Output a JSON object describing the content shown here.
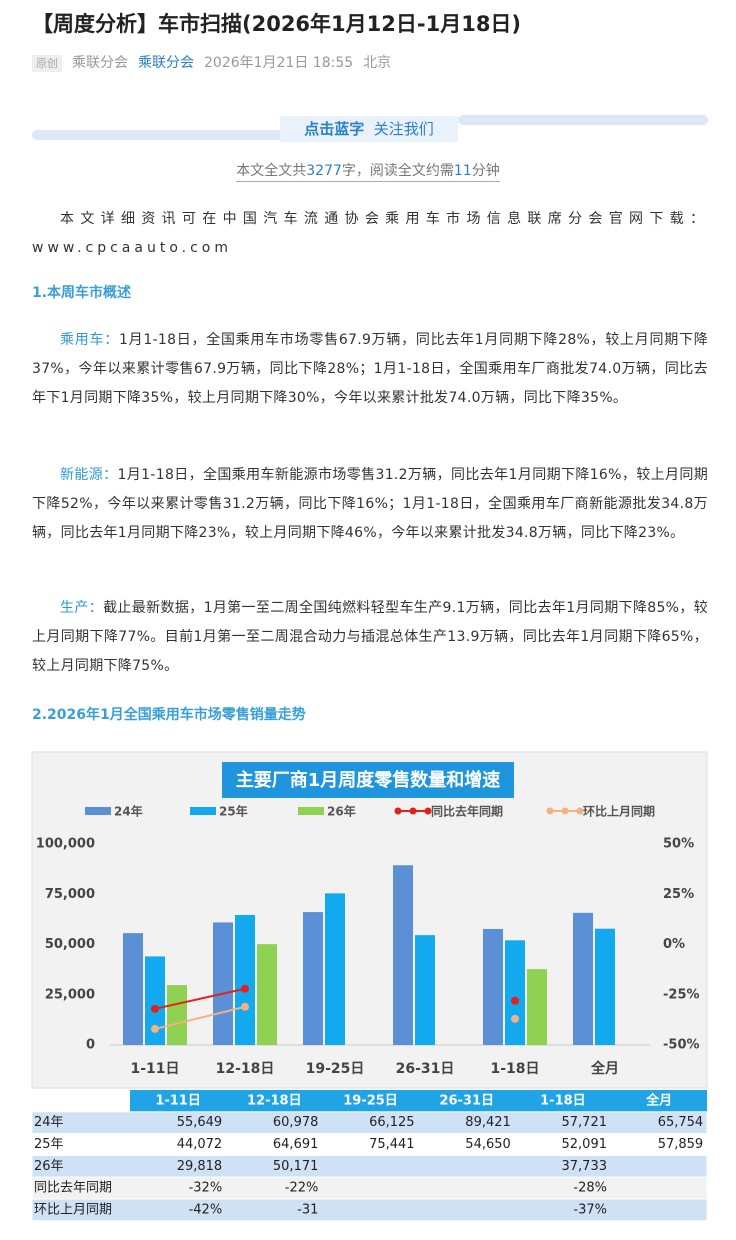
{
  "header": {
    "title": "【周度分析】车市扫描(2026年1月12日-1月18日)",
    "tag": "原创",
    "author": "乘联分会",
    "account": "乘联分会",
    "date": "2026年1月21日 18:55",
    "location": "北京"
  },
  "banner": {
    "strong": "点击蓝字",
    "text": "关注我们"
  },
  "reading": {
    "a": "本文全文共",
    "words": "3277",
    "b": "字，阅读全文约需",
    "minutes": "11",
    "c": "分钟"
  },
  "intro": "本文详细资讯可在中国汽车流通协会乘用车市场信息联席分会官网下载：www.cpcaauto.com",
  "section1": "1.本周车市概述",
  "paragraphs": [
    {
      "label": "乘用车：",
      "text": "1月1-18日，全国乘用车市场零售67.9万辆，同比去年1月同期下降28%，较上月同期下降37%，今年以来累计零售67.9万辆，同比下降28%；1月1-18日，全国乘用车厂商批发74.0万辆，同比去年下1月同期下降35%，较上月同期下降30%，今年以来累计批发74.0万辆，同比下降35%。"
    },
    {
      "label": "新能源：",
      "text": "1月1-18日，全国乘用车新能源市场零售31.2万辆，同比去年1月同期下降16%，较上月同期下降52%，今年以来累计零售31.2万辆，同比下降16%；1月1-18日，全国乘用车厂商新能源批发34.8万辆，同比去年1月同期下降23%，较上月同期下降46%，今年以来累计批发34.8万辆，同比下降23%。"
    },
    {
      "label": "生产：",
      "text": "截止最新数据，1月第一至二周全国纯燃料轻型车生产9.1万辆，同比去年1月同期下降85%，较上月同期下降77%。目前1月第一至二周混合动力与插混总体生产13.9万辆，同比去年1月同期下降65%，较上月同期下降75%。"
    }
  ],
  "section2": "2.2026年1月全国乘用车市场零售销量走势",
  "chart_data": {
    "type": "bar",
    "title": "主要厂商1月周度零售数量和增速",
    "categories": [
      "1-11日",
      "12-18日",
      "19-25日",
      "26-31日",
      "1-18日",
      "全月"
    ],
    "series": [
      {
        "name": "24年",
        "type": "bar",
        "color": "#5b8fd6",
        "values": [
          55649,
          60978,
          66125,
          89421,
          57721,
          65754
        ],
        "value_labels": [
          "55,649",
          "60,978",
          "66,125",
          "89,421",
          "57,721",
          "65,754"
        ]
      },
      {
        "name": "25年",
        "type": "bar",
        "color": "#12a9ef",
        "values": [
          44072,
          64691,
          75441,
          54650,
          52091,
          57859
        ],
        "value_labels": [
          "44,072",
          "64,691",
          "75,441",
          "54,650",
          "52,091",
          "57,859"
        ]
      },
      {
        "name": "26年",
        "type": "bar",
        "color": "#8fd150",
        "values": [
          29818,
          50171,
          null,
          null,
          37733,
          null
        ],
        "value_labels": [
          "29,818",
          "50,171",
          null,
          null,
          "37,733",
          null
        ]
      },
      {
        "name": "同比去年同期",
        "type": "line",
        "axis": "y2",
        "color": "#e3201b",
        "values": [
          -32,
          -22,
          null,
          null,
          -28,
          null
        ],
        "value_labels": [
          "-32%",
          "-22%",
          null,
          null,
          "-28%",
          null
        ]
      },
      {
        "name": "环比上月同期",
        "type": "line",
        "axis": "y2",
        "color": "#f4b183",
        "values": [
          -42,
          -31,
          null,
          null,
          -37,
          null
        ],
        "value_labels": [
          "-42%",
          "-31",
          null,
          null,
          "-37%",
          null
        ]
      }
    ],
    "ylim": [
      0,
      100000
    ],
    "yticks": [
      0,
      {
        "value": 25000,
        "label": "25,000"
      },
      {
        "value": 50000,
        "label": "50,000"
      },
      {
        "value": 75000,
        "label": "75,000"
      },
      {
        "value": 100000,
        "label": "100,000"
      }
    ],
    "y2lim": [
      -50,
      50
    ],
    "y2ticks": [
      {
        "value": -50,
        "label": "-50%"
      },
      {
        "value": -25,
        "label": "-25%"
      },
      {
        "value": 0,
        "label": "0%"
      },
      {
        "value": 25,
        "label": "25%"
      },
      {
        "value": 50,
        "label": "50%"
      }
    ],
    "grid": false,
    "legend": "top"
  }
}
